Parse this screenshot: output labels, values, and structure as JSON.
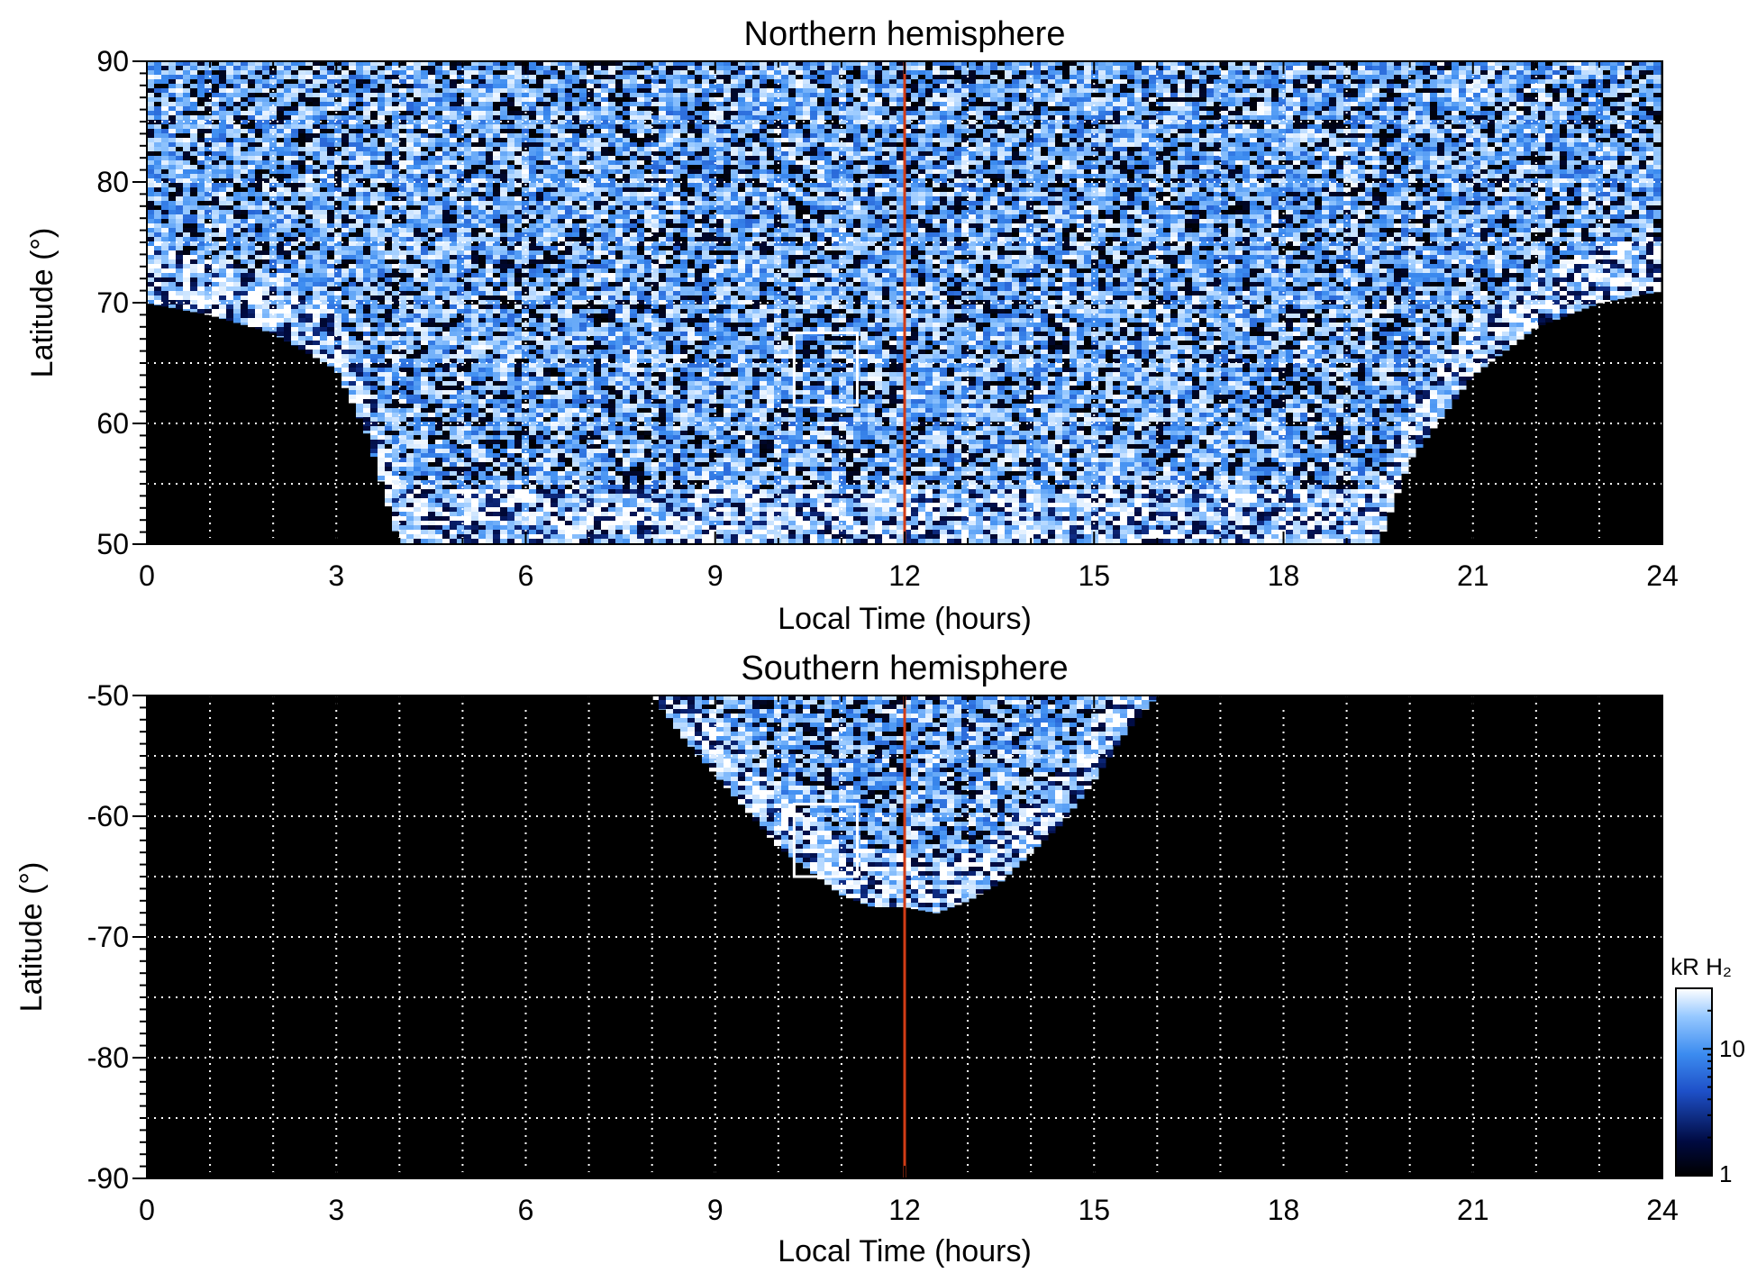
{
  "chart_data": [
    {
      "type": "heatmap",
      "title": "Northern hemisphere",
      "xlabel": "Local Time (hours)",
      "ylabel": "Latitude (°)",
      "xlim": [
        0,
        24
      ],
      "ylim": [
        50,
        90
      ],
      "xticks": [
        "0",
        "3",
        "6",
        "9",
        "12",
        "15",
        "18",
        "21",
        "24"
      ],
      "yticks": [
        "50",
        "60",
        "70",
        "80",
        "90"
      ],
      "grid": true,
      "reference_line": {
        "local_time": 12,
        "color": "#d23c16"
      },
      "highlight_box": {
        "local_time": [
          10.25,
          11.25
        ],
        "latitude": [
          61.5,
          67.5
        ]
      },
      "coverage": {
        "boundary_local_time": [
          0,
          1,
          2,
          3,
          3.5,
          4,
          5,
          6,
          7,
          8,
          9,
          10,
          11,
          12,
          13,
          14,
          15,
          16,
          17,
          18,
          19,
          19.5,
          20,
          21,
          22,
          23,
          24
        ],
        "boundary_min_latitude": [
          70,
          69,
          67.5,
          64.5,
          59,
          50,
          50,
          50,
          50,
          50,
          50,
          50,
          50,
          50,
          50,
          50,
          50,
          50,
          50,
          50,
          50,
          50,
          57,
          64,
          68,
          70,
          71
        ]
      }
    },
    {
      "type": "heatmap",
      "title": "Southern hemisphere",
      "xlabel": "Local Time (hours)",
      "ylabel": "Latitude (°)",
      "xlim": [
        0,
        24
      ],
      "ylim": [
        -90,
        -50
      ],
      "xticks": [
        "0",
        "3",
        "6",
        "9",
        "12",
        "15",
        "18",
        "21",
        "24"
      ],
      "yticks": [
        "-90",
        "-80",
        "-70",
        "-60",
        "-50"
      ],
      "grid": true,
      "reference_line": {
        "local_time": 12,
        "color": "#d23c16"
      },
      "highlight_box": {
        "local_time": [
          10.25,
          11.25
        ],
        "latitude": [
          -65,
          -59
        ]
      },
      "coverage": {
        "boundary_local_time": [
          8,
          8.5,
          9,
          9.5,
          10,
          10.5,
          11,
          11.5,
          12,
          12.5,
          13,
          13.5,
          14,
          14.5,
          15,
          15.5,
          16
        ],
        "boundary_min_latitude": [
          -50,
          -53.5,
          -56.5,
          -59.5,
          -62.5,
          -64.5,
          -66.5,
          -67.5,
          -67.5,
          -68,
          -67,
          -65.5,
          -63,
          -60.5,
          -57,
          -53,
          -50
        ]
      }
    }
  ],
  "colorbar": {
    "title": "kR H₂",
    "ticks": [
      "10",
      "1"
    ],
    "range": [
      1,
      30
    ],
    "scale": "log",
    "colors": [
      "#000000",
      "#000a40",
      "#1e50c8",
      "#3c8cf0",
      "#96c8ff",
      "#ffffff"
    ]
  }
}
